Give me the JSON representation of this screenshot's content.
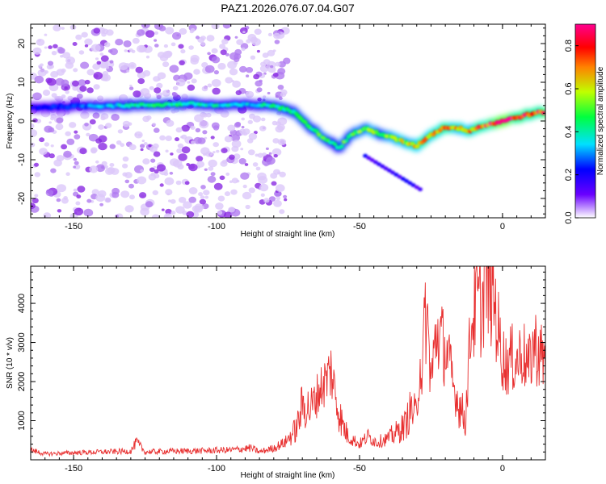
{
  "title": "PAZ1.2026.076.07.04.G07",
  "chart_data": [
    {
      "type": "heatmap",
      "xlabel": "Height of straight line (km)",
      "ylabel": "Frequency (Hz)",
      "xlim": [
        -165,
        15
      ],
      "ylim": [
        -25,
        25
      ],
      "xticks": [
        -150,
        -100,
        -50,
        0
      ],
      "yticks": [
        20,
        10,
        0,
        -10,
        -20
      ],
      "xtick_labels": [
        "-150",
        "-100",
        "-50",
        "0"
      ],
      "ytick_labels": [
        "20",
        "10",
        "0",
        "-10",
        "-20"
      ],
      "colorbar": {
        "label": "Normalized spectral amplitude",
        "range": [
          0,
          0.9
        ],
        "ticks": [
          0.0,
          0.2,
          0.4,
          0.6,
          0.8
        ],
        "tick_labels": [
          "0.0",
          "0.2",
          "0.4",
          "0.6",
          "0.8"
        ]
      },
      "ridge": {
        "x": [
          -165,
          -150,
          -140,
          -130,
          -120,
          -110,
          -100,
          -90,
          -80,
          -72,
          -68,
          -64,
          -60,
          -57,
          -53,
          -48,
          -42,
          -36,
          -30,
          -26,
          -20,
          -14,
          -12,
          -8,
          0,
          8,
          15
        ],
        "frequency": [
          3.5,
          3.8,
          4.0,
          4.0,
          4.2,
          4.5,
          4.0,
          4.2,
          4.0,
          2.0,
          -1.0,
          -3.5,
          -5.5,
          -7.0,
          -3.5,
          -2.0,
          -3.5,
          -5.0,
          -6.5,
          -4.0,
          -1.5,
          -2.0,
          -2.5,
          -1.5,
          0.0,
          1.5,
          2.5
        ],
        "amplitude": [
          0.2,
          0.3,
          0.35,
          0.4,
          0.45,
          0.45,
          0.4,
          0.35,
          0.45,
          0.45,
          0.45,
          0.5,
          0.5,
          0.5,
          0.5,
          0.55,
          0.55,
          0.6,
          0.65,
          0.7,
          0.75,
          0.7,
          0.7,
          0.8,
          0.9,
          0.85,
          0.8
        ]
      }
    },
    {
      "type": "line",
      "xlabel": "Height of straight line (km)",
      "ylabel": "SNR (10 * v/v)",
      "xlim": [
        -165,
        15
      ],
      "ylim": [
        0,
        4950
      ],
      "xticks": [
        -150,
        -100,
        -50,
        0
      ],
      "yticks": [
        1000,
        2000,
        3000,
        4000
      ],
      "xtick_labels": [
        "-150",
        "-100",
        "-50",
        "0"
      ],
      "ytick_labels": [
        "1000",
        "2000",
        "3000",
        "4000"
      ],
      "color": "#e83030",
      "series": [
        {
          "name": "SNR",
          "x": [
            -165,
            -160,
            -150,
            -140,
            -130,
            -128,
            -125,
            -115,
            -105,
            -95,
            -88,
            -85,
            -80,
            -76,
            -72,
            -70,
            -67,
            -64,
            -62,
            -60,
            -58,
            -56,
            -54,
            -52,
            -50,
            -47,
            -44,
            -40,
            -37,
            -34,
            -32,
            -30,
            -29,
            -28,
            -27,
            -26,
            -25,
            -23,
            -21,
            -19,
            -17,
            -15,
            -13,
            -11,
            -9,
            -7,
            -6,
            -5,
            -3,
            -1,
            1,
            3,
            5,
            7,
            9,
            11,
            13,
            15
          ],
          "y": [
            250,
            150,
            180,
            200,
            220,
            450,
            200,
            220,
            230,
            250,
            300,
            200,
            300,
            450,
            800,
            1400,
            1300,
            1800,
            2000,
            2300,
            1500,
            900,
            600,
            500,
            400,
            600,
            450,
            550,
            700,
            900,
            1300,
            1100,
            2500,
            2200,
            3800,
            3200,
            2000,
            3300,
            3000,
            2600,
            1800,
            1400,
            1000,
            3500,
            4000,
            3900,
            5000,
            4500,
            4200,
            3000,
            2400,
            2600,
            2500,
            2800,
            2300,
            3000,
            2700,
            2500
          ]
        }
      ]
    }
  ]
}
